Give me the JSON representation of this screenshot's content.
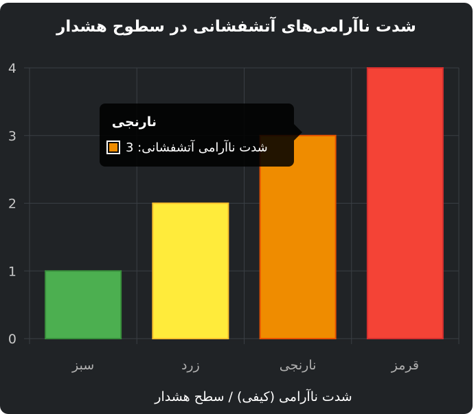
{
  "chart_data": {
    "type": "bar",
    "title": "شدت ناآرامی‌های آتشفشانی در سطوح هشدار",
    "xlabel": "شدت ناآرامی (کیفی) / سطح هشدار",
    "ylabel": "",
    "categories": [
      "سبز",
      "زرد",
      "نارنجی",
      "قرمز"
    ],
    "series": [
      {
        "name": "شدت ناآرامی آتشفشانی",
        "values": [
          1,
          2,
          3,
          4
        ],
        "colors": [
          "#4caf50",
          "#ffeb3b",
          "#ef8c00",
          "#f44336"
        ],
        "border_colors": [
          "#388e3c",
          "#fbc02d",
          "#e65100",
          "#d32f2f"
        ]
      }
    ],
    "ylim": [
      0,
      4
    ],
    "yticks": [
      "0",
      "1",
      "2",
      "3",
      "4"
    ],
    "grid": true,
    "legend": "none",
    "background": "#202326",
    "tooltip": {
      "title": "نارنجی",
      "series_label": "شدت ناآرامی آتشفشانی",
      "value_text": "3",
      "swatch_color": "#ef8c00"
    }
  }
}
